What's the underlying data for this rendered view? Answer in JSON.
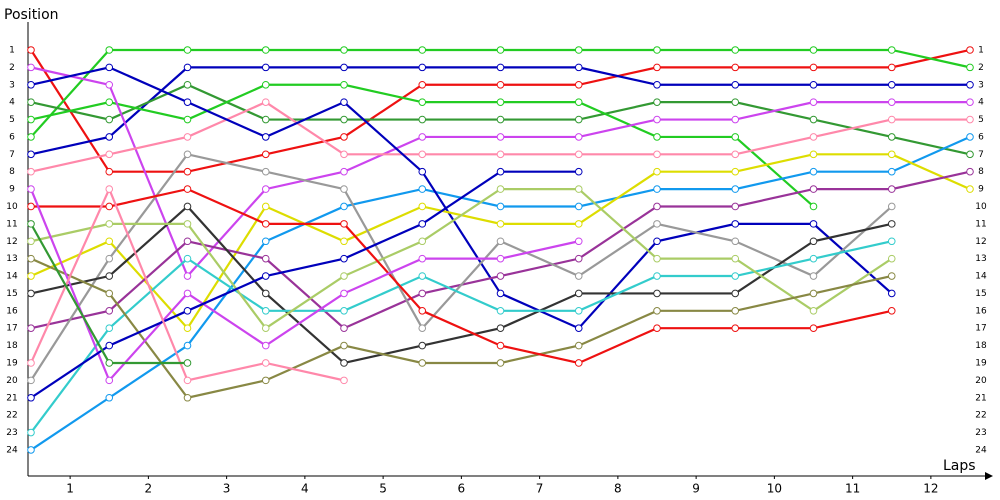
{
  "chart_data": {
    "type": "line",
    "y_label": "Position",
    "x_label": "Laps",
    "x": [
      0,
      1,
      2,
      3,
      4,
      5,
      6,
      7,
      8,
      9,
      10,
      11,
      12
    ],
    "xlim": [
      0,
      12
    ],
    "xticks": [
      {
        "value": 0.5,
        "label": "1"
      },
      {
        "value": 1.5,
        "label": "2"
      },
      {
        "value": 2.5,
        "label": "3"
      },
      {
        "value": 3.5,
        "label": "4"
      },
      {
        "value": 4.5,
        "label": "5"
      },
      {
        "value": 5.5,
        "label": "6"
      },
      {
        "value": 6.5,
        "label": "7"
      },
      {
        "value": 7.5,
        "label": "8"
      },
      {
        "value": 8.5,
        "label": "9"
      },
      {
        "value": 9.5,
        "label": "10"
      },
      {
        "value": 10.5,
        "label": "11"
      },
      {
        "value": 11.5,
        "label": "12"
      }
    ],
    "ylim": [
      25.5,
      0
    ],
    "yticks": [
      1,
      2,
      3,
      4,
      5,
      6,
      7,
      8,
      9,
      10,
      11,
      12,
      13,
      14,
      15,
      16,
      17,
      18,
      19,
      20,
      21,
      22,
      23,
      24
    ],
    "series": [
      {
        "color": "#ee1111",
        "values": [
          1,
          8,
          8,
          7,
          6,
          3,
          3,
          3,
          2,
          2,
          2,
          2,
          1
        ]
      },
      {
        "color": "#22cc22",
        "values": [
          6,
          1,
          1,
          1,
          1,
          1,
          1,
          1,
          1,
          1,
          1,
          1,
          2
        ]
      },
      {
        "color": "#0000bb",
        "values": [
          7,
          6,
          2,
          2,
          2,
          2,
          2,
          2,
          3,
          3,
          3,
          3,
          3
        ]
      },
      {
        "color": "#339933",
        "values": [
          4,
          5,
          3,
          5,
          5,
          5,
          5,
          5,
          4,
          4,
          5,
          6,
          7
        ]
      },
      {
        "color": "#22cc22",
        "values": [
          5,
          4,
          5,
          3,
          3,
          4,
          4,
          4,
          6,
          6,
          10,
          null,
          null
        ]
      },
      {
        "color": "#cc44ee",
        "values": [
          2,
          3,
          14,
          9,
          8,
          6,
          6,
          6,
          5,
          5,
          4,
          4,
          4
        ]
      },
      {
        "color": "#ff88aa",
        "values": [
          8,
          7,
          6,
          4,
          7,
          7,
          7,
          7,
          7,
          7,
          6,
          5,
          5
        ]
      },
      {
        "color": "#1199ee",
        "values": [
          24,
          21,
          18,
          12,
          10,
          9,
          10,
          10,
          9,
          9,
          8,
          8,
          6
        ]
      },
      {
        "color": "#0000bb",
        "values": [
          3,
          2,
          4,
          6,
          4,
          8,
          15,
          17,
          12,
          11,
          11,
          15,
          null
        ]
      },
      {
        "color": "#dddd00",
        "values": [
          14,
          12,
          17,
          10,
          12,
          10,
          11,
          11,
          8,
          8,
          7,
          7,
          9
        ]
      },
      {
        "color": "#993399",
        "values": [
          17,
          16,
          12,
          13,
          17,
          15,
          14,
          13,
          10,
          10,
          9,
          9,
          8
        ]
      },
      {
        "color": "#999999",
        "values": [
          20,
          13,
          7,
          8,
          9,
          17,
          12,
          14,
          11,
          12,
          14,
          10,
          null
        ]
      },
      {
        "color": "#333333",
        "values": [
          15,
          14,
          10,
          15,
          19,
          18,
          17,
          15,
          15,
          15,
          12,
          11,
          null
        ]
      },
      {
        "color": "#33cccc",
        "values": [
          23,
          17,
          13,
          16,
          16,
          14,
          16,
          16,
          14,
          14,
          13,
          12,
          null
        ]
      },
      {
        "color": "#aacc66",
        "values": [
          12,
          11,
          11,
          17,
          14,
          12,
          9,
          9,
          13,
          13,
          16,
          13,
          null
        ]
      },
      {
        "color": "#888844",
        "values": [
          13,
          15,
          21,
          20,
          18,
          19,
          19,
          18,
          16,
          16,
          15,
          14,
          null
        ]
      },
      {
        "color": "#ee1111",
        "values": [
          10,
          10,
          9,
          11,
          11,
          16,
          18,
          19,
          17,
          17,
          17,
          16,
          null
        ]
      },
      {
        "color": "#cc44ee",
        "values": [
          9,
          20,
          15,
          18,
          15,
          13,
          13,
          12,
          null,
          null,
          null,
          null,
          null
        ]
      },
      {
        "color": "#0000bb",
        "values": [
          21,
          18,
          16,
          14,
          13,
          11,
          8,
          8,
          null,
          null,
          null,
          null,
          null
        ]
      },
      {
        "color": "#ff88aa",
        "values": [
          19,
          9,
          20,
          19,
          20,
          null,
          null,
          null,
          null,
          null,
          null,
          null,
          null
        ]
      },
      {
        "color": "#339933",
        "values": [
          11,
          19,
          19,
          null,
          null,
          null,
          null,
          null,
          null,
          null,
          null,
          null,
          null
        ]
      }
    ]
  }
}
